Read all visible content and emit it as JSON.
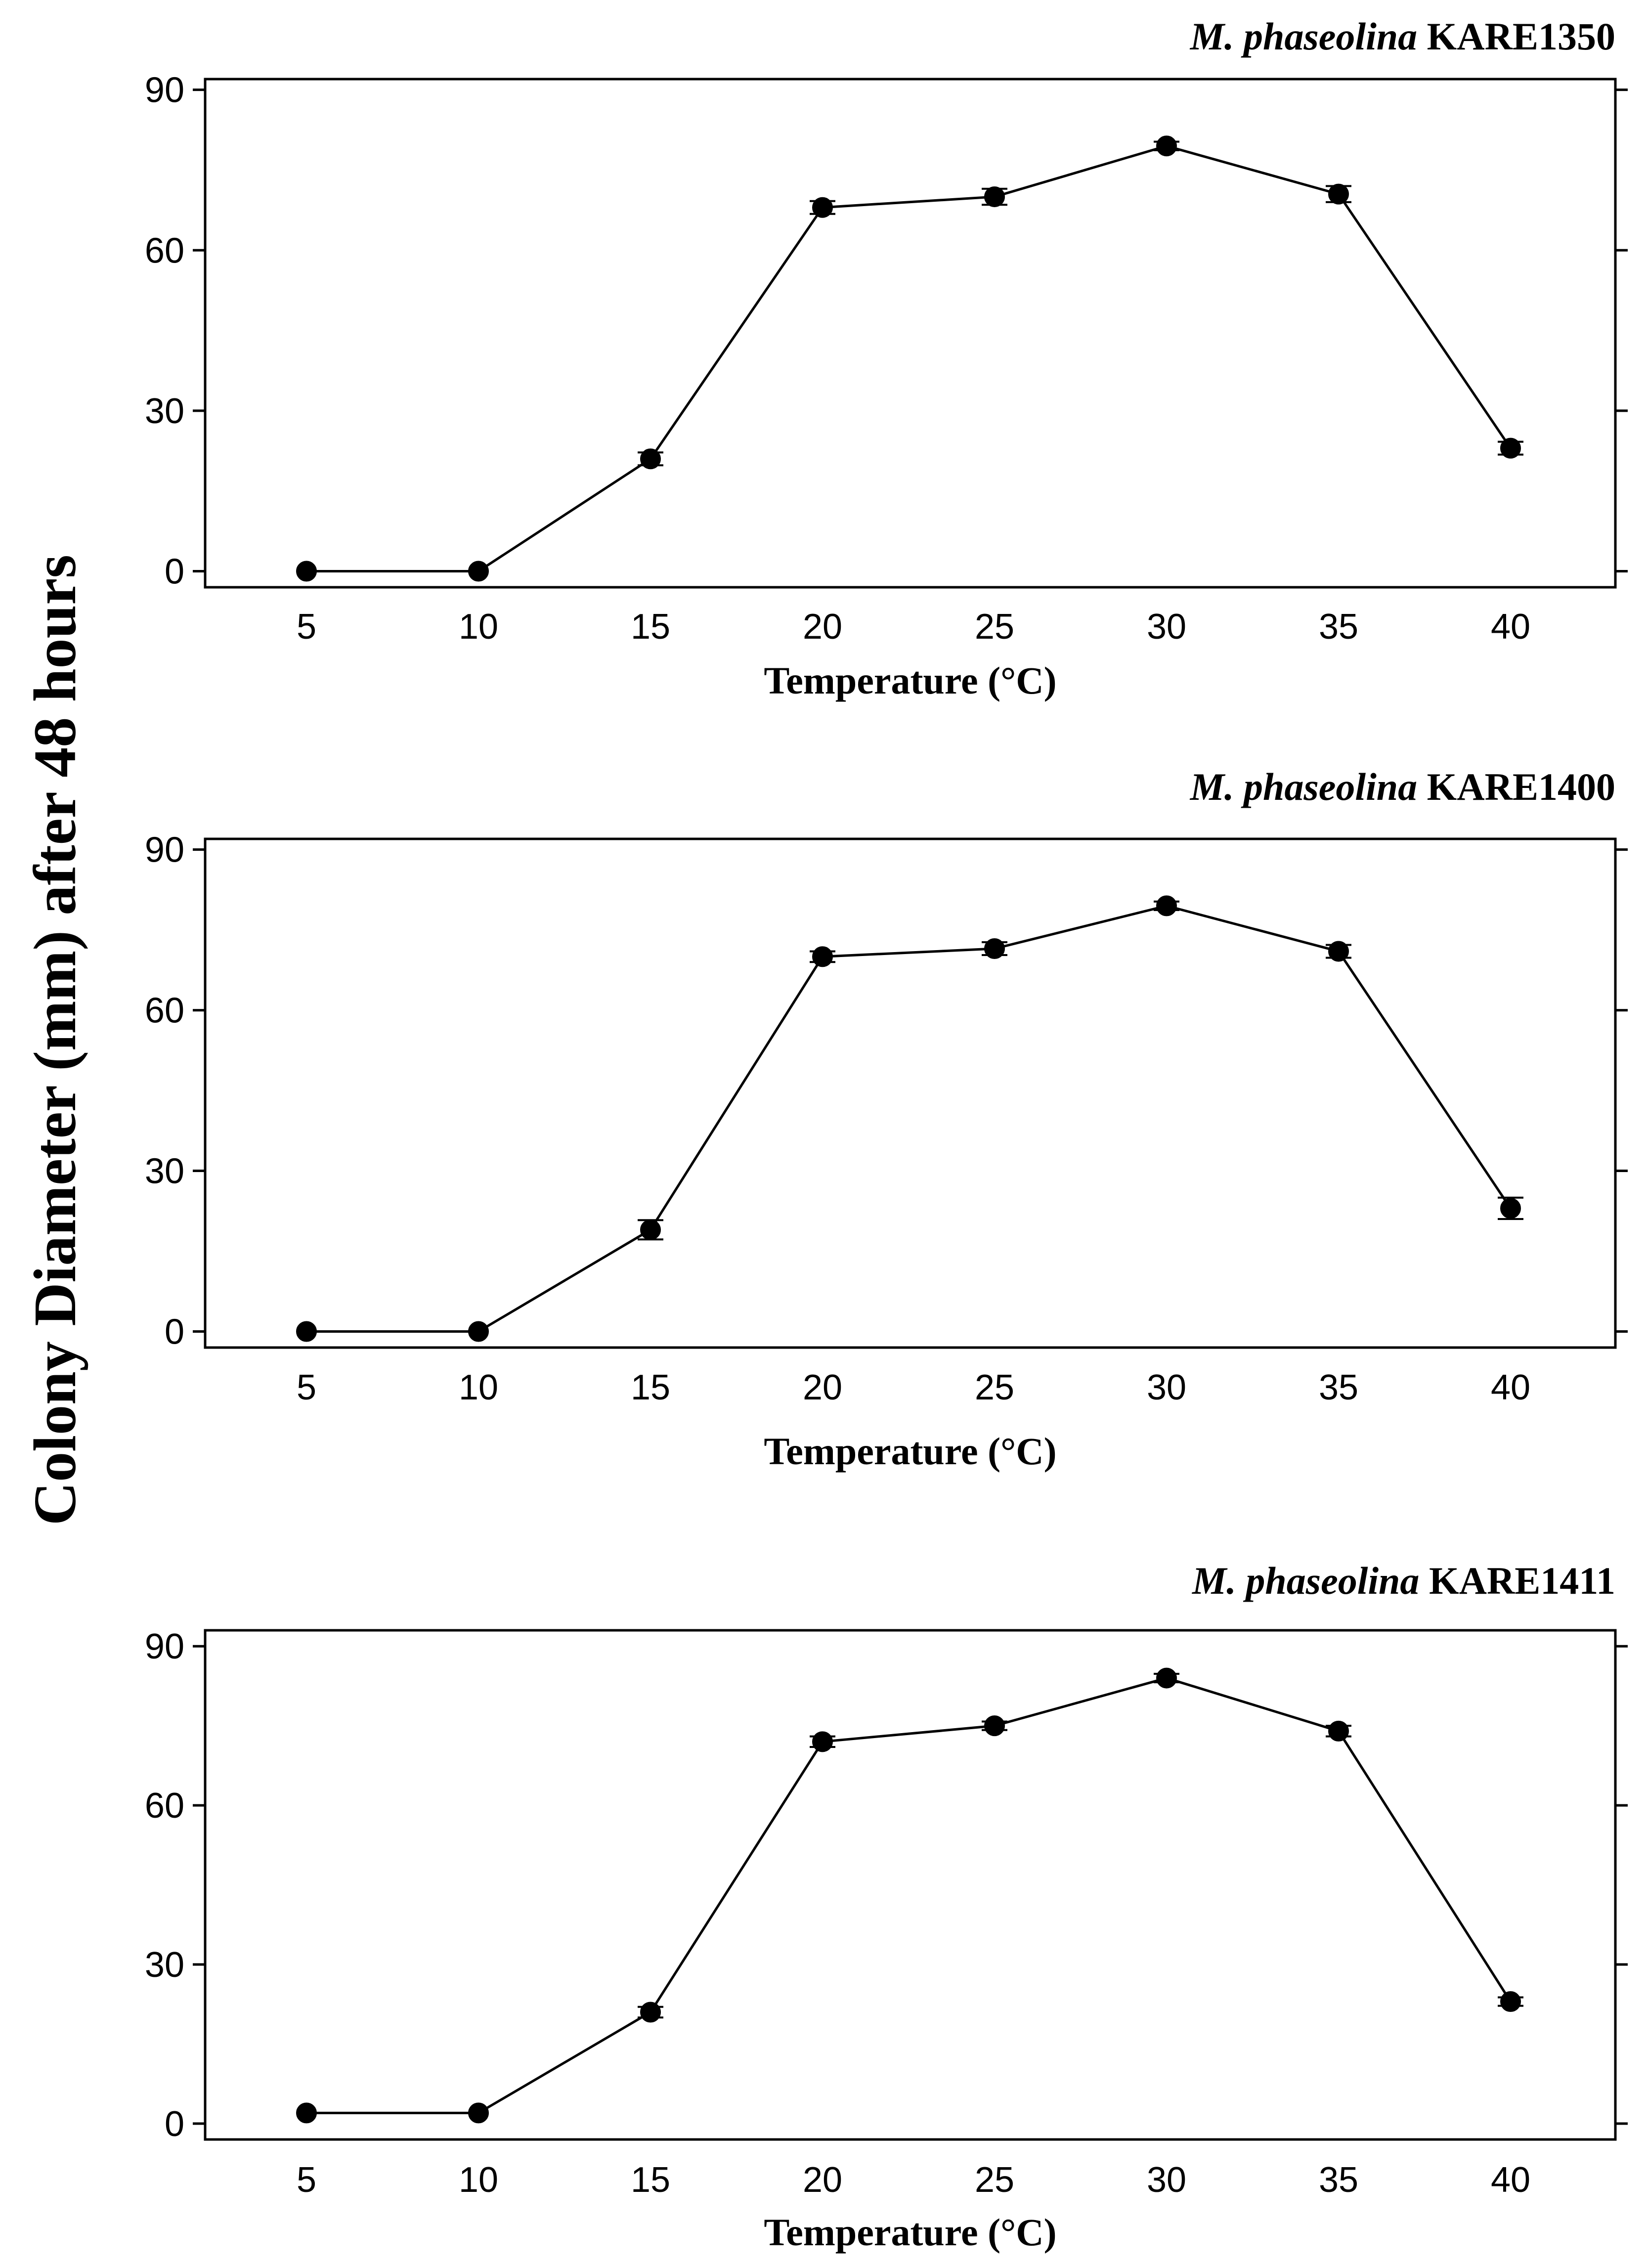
{
  "figure": {
    "y_axis_title": "Colony Diameter (mm) after 48 hours"
  },
  "chart_data": [
    {
      "type": "line",
      "title_species": "M. phaseolina",
      "title_isolate": "KARE1350",
      "xlabel": "Temperature  (°C)",
      "ylabel": "Colony Diameter (mm) after 48 hours",
      "x": [
        5,
        10,
        15,
        20,
        25,
        30,
        35,
        40
      ],
      "x_tick_labels": [
        "5",
        "10",
        "15",
        "20",
        "25",
        "30",
        "35",
        "40"
      ],
      "values": [
        0,
        0,
        21,
        68,
        70,
        79.5,
        70.5,
        23
      ],
      "errors": [
        0,
        0,
        1.2,
        1.2,
        1.5,
        0.8,
        1.5,
        1.2
      ],
      "y_ticks": [
        0,
        30,
        60,
        90
      ],
      "y_tick_labels": [
        "0",
        "30",
        "60",
        "90"
      ],
      "ylim": [
        -3,
        92
      ],
      "marker": "filled-circle",
      "color": "#000000"
    },
    {
      "type": "line",
      "title_species": "M. phaseolina",
      "title_isolate": "KARE1400",
      "xlabel": "Temperature  (°C)",
      "ylabel": "Colony Diameter (mm) after 48 hours",
      "x": [
        5,
        10,
        15,
        20,
        25,
        30,
        35,
        40
      ],
      "x_tick_labels": [
        "5",
        "10",
        "15",
        "20",
        "25",
        "30",
        "35",
        "40"
      ],
      "values": [
        0,
        0,
        19,
        70,
        71.5,
        79.5,
        71,
        23
      ],
      "errors": [
        0,
        0,
        1.8,
        1.0,
        1.2,
        0.8,
        1.2,
        2.0
      ],
      "y_ticks": [
        0,
        30,
        60,
        90
      ],
      "y_tick_labels": [
        "0",
        "30",
        "60",
        "90"
      ],
      "ylim": [
        -3,
        92
      ],
      "marker": "filled-circle",
      "color": "#000000"
    },
    {
      "type": "line",
      "title_species": "M. phaseolina",
      "title_isolate": "KARE1411",
      "xlabel": "Temperature  (°C)",
      "ylabel": "Colony Diameter (mm) after 48 hours",
      "x": [
        5,
        10,
        15,
        20,
        25,
        30,
        35,
        40
      ],
      "x_tick_labels": [
        "5",
        "10",
        "15",
        "20",
        "25",
        "30",
        "35",
        "40"
      ],
      "values": [
        2,
        2,
        21,
        72,
        75,
        84,
        74,
        23
      ],
      "errors": [
        0,
        0,
        1.0,
        1.0,
        0.8,
        0.8,
        1.0,
        0.8
      ],
      "y_ticks": [
        0,
        30,
        60,
        90
      ],
      "y_tick_labels": [
        "0",
        "30",
        "60",
        "90"
      ],
      "ylim": [
        -3,
        93
      ],
      "marker": "filled-circle",
      "color": "#000000"
    }
  ]
}
